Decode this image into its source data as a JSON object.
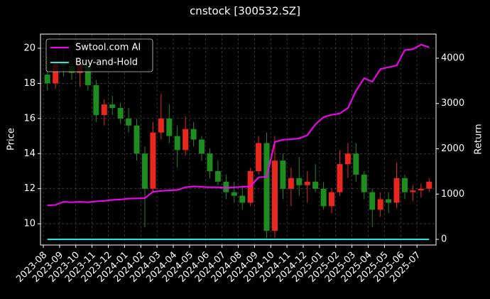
{
  "chart_data": {
    "type": "candlestick",
    "title": "cnstock [300532.SZ]",
    "ylabel": "Price",
    "y2label": "Return",
    "categories": [
      "2023-08",
      null,
      "2023-09",
      null,
      "2023-10",
      null,
      "2023-11",
      null,
      "2023-12",
      null,
      "2024-01",
      null,
      "2024-02",
      null,
      "2024-03",
      null,
      "2024-04",
      null,
      "2024-05",
      null,
      "2024-06",
      null,
      "2024-07",
      null,
      "2024-08",
      null,
      "2024-09",
      null,
      "2024-10",
      null,
      "2024-11",
      null,
      "2024-12",
      null,
      "2025-01",
      null,
      "2025-02",
      null,
      "2025-03",
      null,
      "2025-04",
      null,
      "2025-05",
      null,
      "2025-06",
      null,
      "2025-07",
      null
    ],
    "open": [
      18.5,
      18.0,
      19.2,
      19.0,
      18.6,
      19.1,
      17.9,
      16.2,
      16.8,
      16.6,
      16.0,
      15.6,
      14.0,
      12.0,
      15.2,
      16.0,
      15.0,
      14.2,
      15.4,
      14.8,
      14.0,
      13.0,
      12.4,
      11.8,
      11.6,
      11.2,
      13.0,
      14.6,
      9.6,
      13.6,
      12.0,
      12.6,
      12.2,
      12.4,
      12.0,
      11.0,
      11.8,
      13.4,
      14.0,
      12.8,
      11.8,
      10.8,
      11.4,
      11.2,
      12.6,
      11.8,
      11.9,
      12.0
    ],
    "high": [
      19.6,
      19.8,
      20.0,
      19.8,
      19.4,
      19.6,
      18.2,
      17.1,
      17.3,
      16.9,
      16.6,
      16.0,
      14.4,
      15.8,
      17.4,
      16.8,
      15.6,
      16.1,
      15.8,
      15.0,
      14.3,
      13.6,
      12.8,
      12.4,
      12.2,
      13.2,
      15.0,
      15.2,
      15.0,
      14.0,
      13.2,
      13.8,
      13.0,
      13.4,
      12.4,
      12.0,
      14.2,
      14.6,
      14.6,
      13.0,
      12.0,
      11.8,
      11.8,
      13.5,
      12.8,
      12.2,
      12.3,
      12.6
    ],
    "low": [
      17.6,
      17.7,
      18.4,
      18.2,
      17.8,
      17.6,
      15.8,
      15.6,
      16.2,
      15.7,
      15.2,
      13.6,
      9.8,
      11.8,
      14.8,
      14.6,
      13.2,
      13.9,
      14.4,
      13.6,
      12.6,
      12.2,
      11.4,
      11.2,
      10.8,
      11.0,
      12.8,
      9.2,
      9.2,
      11.4,
      11.0,
      11.6,
      11.2,
      11.8,
      10.8,
      10.6,
      11.6,
      12.6,
      12.4,
      11.4,
      9.8,
      10.4,
      10.6,
      10.9,
      11.4,
      11.3,
      11.5,
      11.8
    ],
    "close": [
      18.0,
      19.2,
      19.0,
      18.6,
      19.1,
      17.9,
      16.2,
      16.8,
      16.6,
      16.0,
      15.6,
      14.0,
      12.0,
      15.2,
      16.0,
      15.0,
      14.2,
      15.4,
      14.8,
      14.0,
      13.0,
      12.4,
      11.8,
      11.6,
      11.2,
      13.0,
      14.6,
      9.6,
      13.6,
      12.0,
      12.6,
      12.2,
      12.4,
      12.0,
      11.0,
      11.8,
      13.4,
      14.0,
      12.8,
      11.8,
      10.8,
      11.4,
      11.2,
      12.6,
      11.8,
      11.9,
      12.0,
      12.4
    ],
    "up_color": "#e8281e",
    "down_color": "#1e8c1e",
    "series": [
      {
        "name": "Swtool.com AI",
        "color": "#ff00ff",
        "axis": "y2",
        "values": [
          750,
          760,
          830,
          820,
          830,
          820,
          840,
          850,
          870,
          880,
          900,
          905,
          910,
          1050,
          1070,
          1080,
          1090,
          1150,
          1170,
          1160,
          1150,
          1150,
          1140,
          1150,
          1160,
          1170,
          1370,
          1380,
          2150,
          2200,
          2210,
          2230,
          2300,
          2540,
          2700,
          2750,
          2780,
          2900,
          3280,
          3560,
          3480,
          3760,
          3800,
          3840,
          4180,
          4200,
          4300,
          4240
        ]
      },
      {
        "name": "Buy-and-Hold",
        "color": "#22e5e5",
        "axis": "y2",
        "values": [
          0,
          0,
          0,
          0,
          0,
          0,
          0,
          0,
          0,
          0,
          0,
          0,
          0,
          0,
          0,
          0,
          0,
          0,
          0,
          0,
          0,
          0,
          0,
          0,
          0,
          0,
          0,
          0,
          0,
          0,
          0,
          0,
          0,
          0,
          0,
          0,
          0,
          0,
          0,
          0,
          0,
          0,
          0,
          0,
          0,
          0,
          0,
          0
        ]
      }
    ],
    "ylim": [
      8.79,
      20.81
    ],
    "yticks": [
      10,
      12,
      14,
      16,
      18,
      20
    ],
    "y2lim": [
      -125,
      4533
    ],
    "y2ticks": [
      0,
      1000,
      2000,
      3000,
      4000
    ],
    "grid": true,
    "legend": "upper left"
  }
}
